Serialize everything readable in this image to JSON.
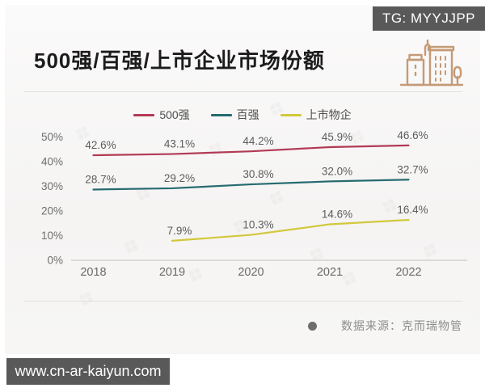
{
  "badges": {
    "tg": "TG: MYYJJPP",
    "site": "www.cn-ar-kaiyun.com"
  },
  "header": {
    "title": "500强/百强/上市企业市场份额"
  },
  "icons": {
    "buildings": "city-buildings-icon",
    "buildings_color": "#c59a76"
  },
  "source": {
    "bullet": "dot-icon",
    "label": "数据来源：克而瑞物管"
  },
  "colors": {
    "badge_bg": "#595959",
    "axis_line": "#c9c9c9",
    "tick_text": "#6e6e6e",
    "data_label_text": "#5c5c5c"
  },
  "chart_data": {
    "type": "line",
    "title": "500强/百强/上市企业市场份额",
    "categories": [
      "2018",
      "2019",
      "2020",
      "2021",
      "2022"
    ],
    "series": [
      {
        "name": "500强",
        "color": "#b23a55",
        "values": [
          42.6,
          43.1,
          44.2,
          45.9,
          46.6
        ]
      },
      {
        "name": "百强",
        "color": "#266b70",
        "values": [
          28.7,
          29.2,
          30.8,
          32.0,
          32.7
        ]
      },
      {
        "name": "上市物企",
        "color": "#d2c83c",
        "values": [
          null,
          7.9,
          10.3,
          14.6,
          16.4
        ]
      }
    ],
    "xlabel": "",
    "ylabel": "",
    "ylim": [
      0,
      50
    ],
    "yticks": [
      "0%",
      "10%",
      "20%",
      "30%",
      "40%",
      "50%"
    ],
    "grid": false,
    "legend_position": "top",
    "data_labels": true,
    "label_format": "one_decimal_percent"
  }
}
